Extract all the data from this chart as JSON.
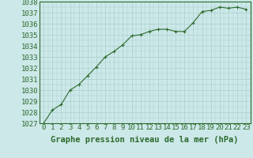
{
  "x": [
    0,
    1,
    2,
    3,
    4,
    5,
    6,
    7,
    8,
    9,
    10,
    11,
    12,
    13,
    14,
    15,
    16,
    17,
    18,
    19,
    20,
    21,
    22,
    23
  ],
  "y": [
    1027.0,
    1028.2,
    1028.7,
    1030.0,
    1030.5,
    1031.3,
    1032.1,
    1033.0,
    1033.5,
    1034.1,
    1034.9,
    1035.0,
    1035.3,
    1035.5,
    1035.5,
    1035.3,
    1035.3,
    1036.1,
    1037.1,
    1037.2,
    1037.5,
    1037.4,
    1037.5,
    1037.3
  ],
  "line_color": "#2d6a2d",
  "marker_color": "#2d6a2d",
  "bg_color": "#cce8e8",
  "grid_color": "#aacfcf",
  "text_color": "#2d6a2d",
  "xlabel": "Graphe pression niveau de la mer (hPa)",
  "ylim": [
    1027,
    1038
  ],
  "yticks": [
    1027,
    1028,
    1029,
    1030,
    1031,
    1032,
    1033,
    1034,
    1035,
    1036,
    1037,
    1038
  ],
  "xticks": [
    0,
    1,
    2,
    3,
    4,
    5,
    6,
    7,
    8,
    9,
    10,
    11,
    12,
    13,
    14,
    15,
    16,
    17,
    18,
    19,
    20,
    21,
    22,
    23
  ],
  "font_size": 6.5,
  "xlabel_font_size": 7.5
}
